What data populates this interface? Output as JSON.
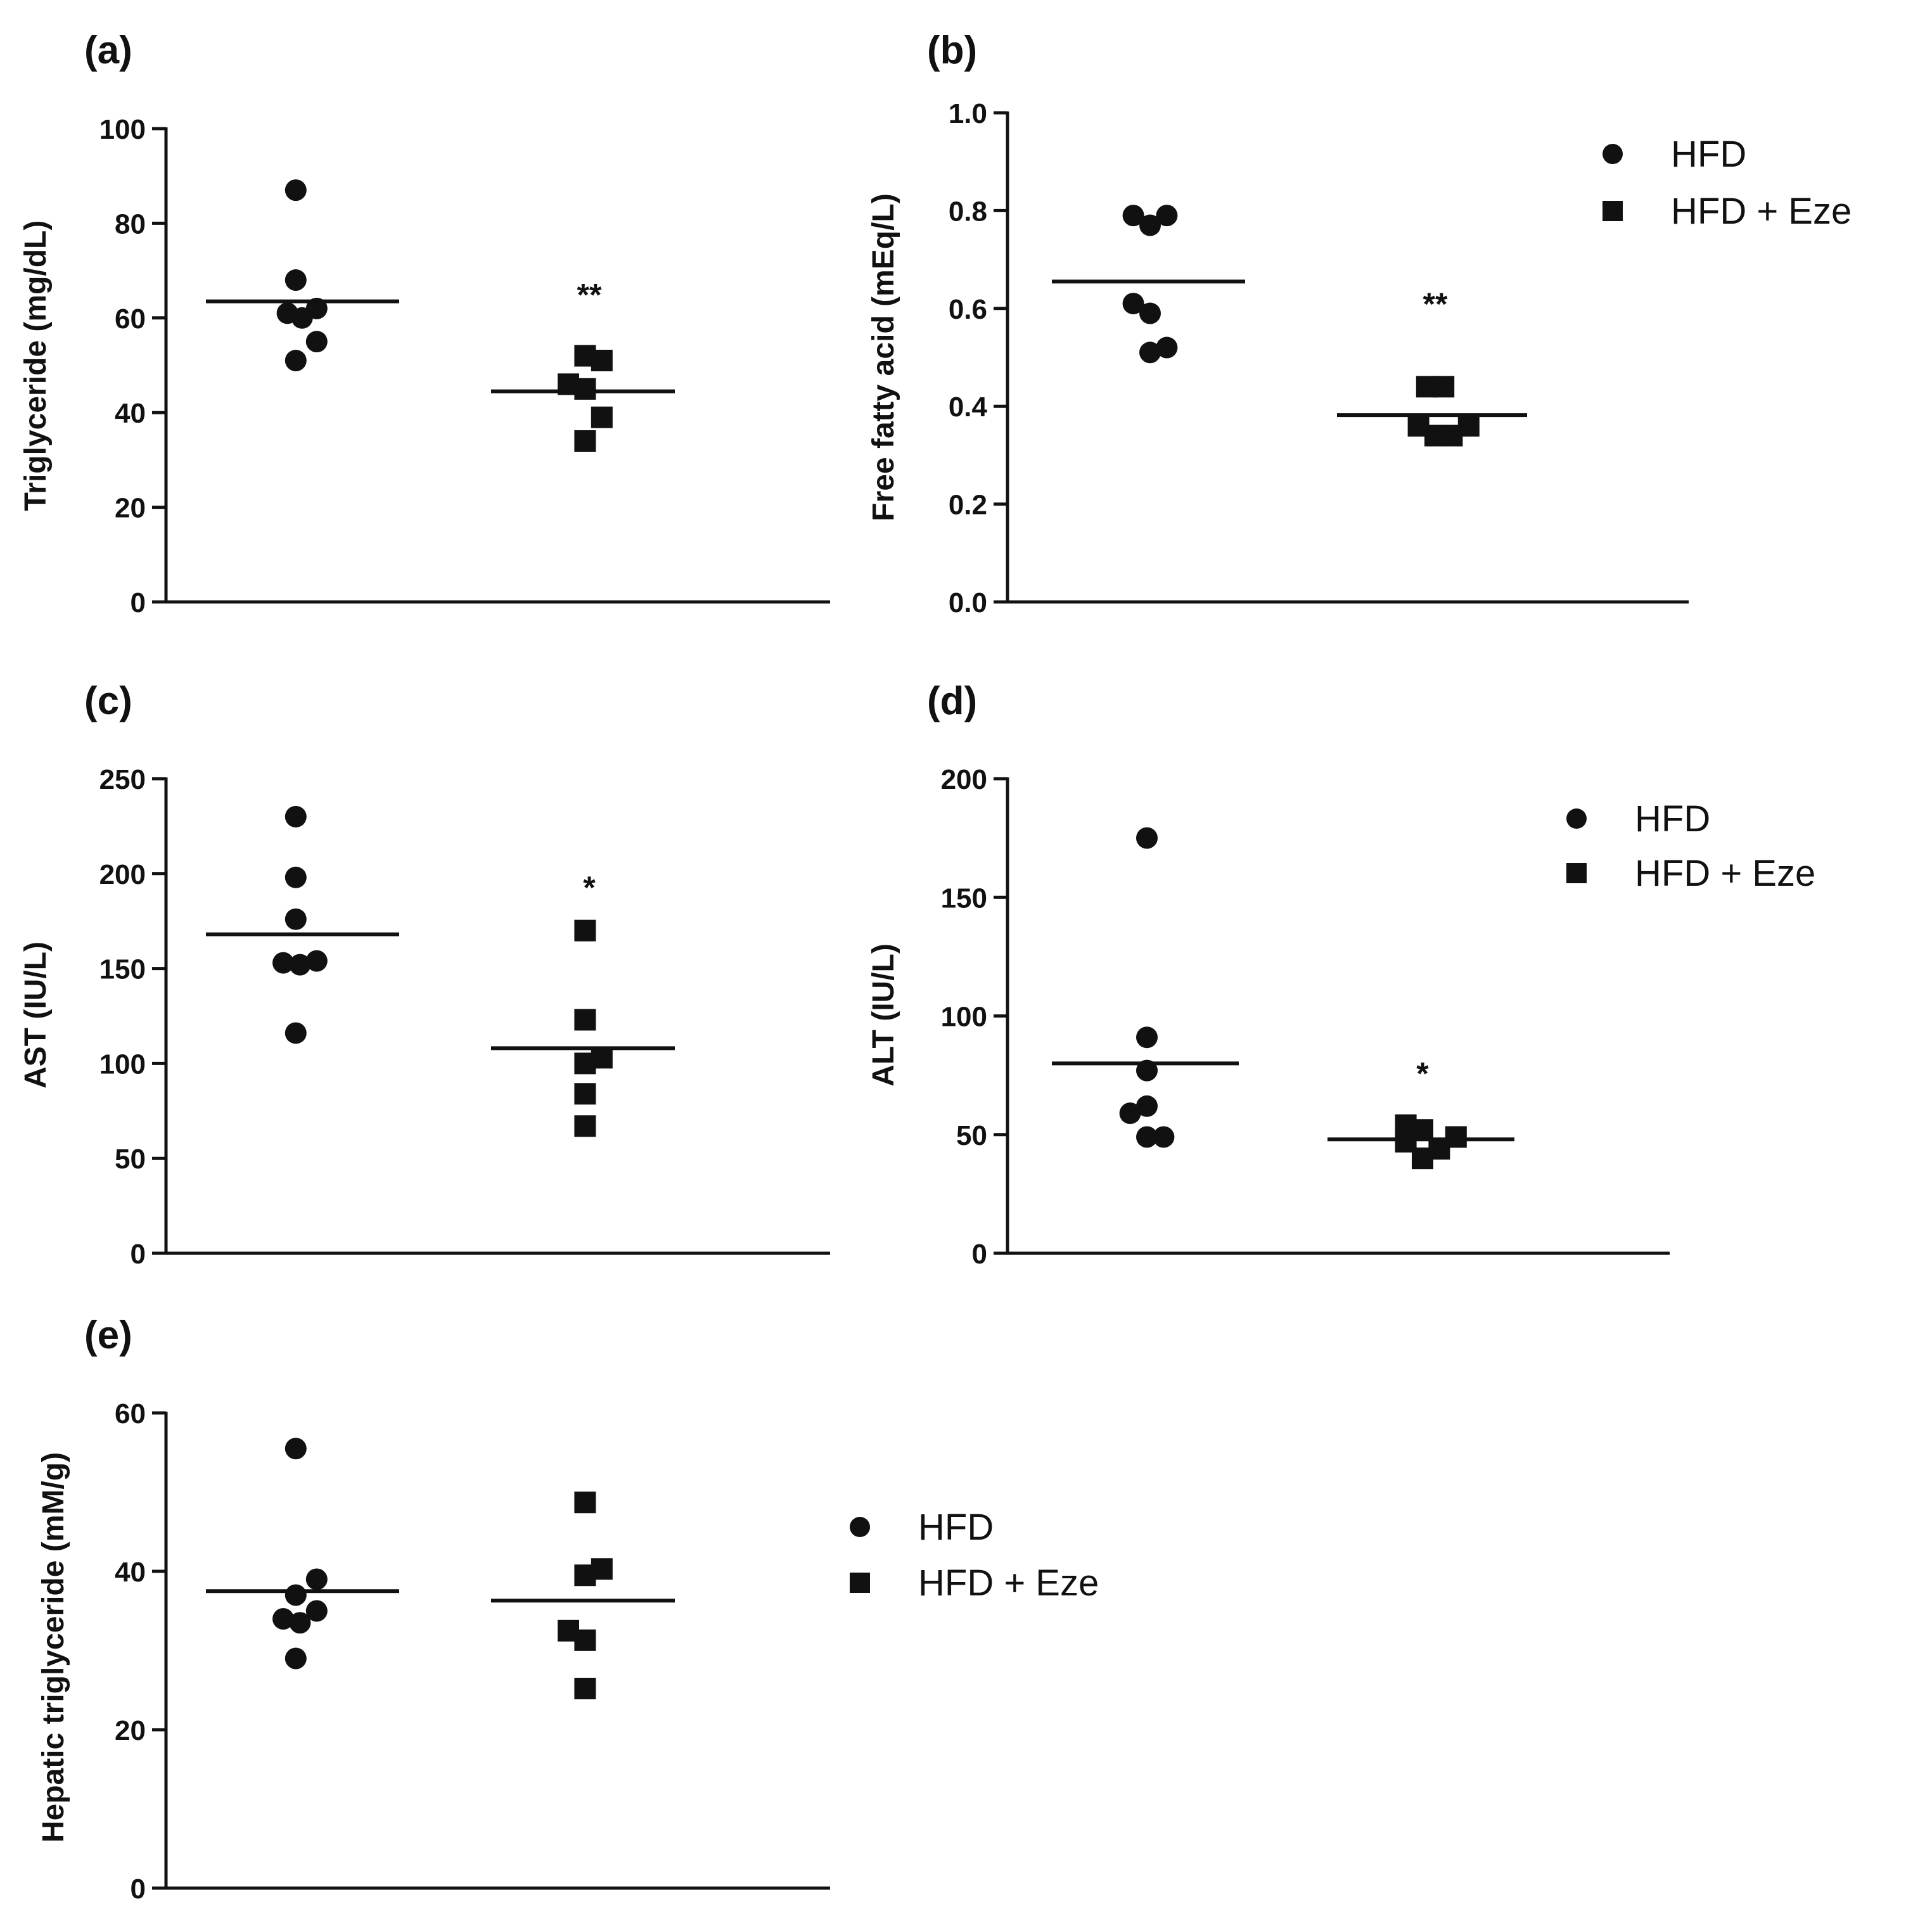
{
  "legend": {
    "items": [
      {
        "label": "HFD",
        "marker": "circle"
      },
      {
        "label": "HFD + Eze",
        "marker": "square"
      }
    ],
    "items_b": [
      {
        "label": "HFD",
        "marker": "circle"
      },
      {
        "label": "HFD +   Eze",
        "marker": "square"
      }
    ]
  },
  "colors": {
    "marker": "#111111",
    "axis": "#111111"
  },
  "chart_data": [
    {
      "panel": "(a)",
      "type": "scatter",
      "ylabel": "Triglyceride (mg/dL)",
      "ylim": [
        0,
        100
      ],
      "yticks": [
        0,
        20,
        40,
        60,
        80,
        100
      ],
      "tick_decimals": 0,
      "groups": [
        {
          "name": "HFD",
          "marker": "circle",
          "mean": 63.5,
          "points": [
            [
              -0.04,
              87
            ],
            [
              -0.04,
              68
            ],
            [
              -0.08,
              61
            ],
            [
              -0.01,
              60
            ],
            [
              0.06,
              62
            ],
            [
              0.06,
              55
            ],
            [
              -0.04,
              51
            ]
          ]
        },
        {
          "name": "HFD + Eze",
          "marker": "square",
          "mean": 44.5,
          "points": [
            [
              -0.1,
              46
            ],
            [
              -0.02,
              45
            ],
            [
              -0.02,
              52
            ],
            [
              0.06,
              51
            ],
            [
              0.06,
              39
            ],
            [
              -0.02,
              34
            ]
          ],
          "significance": "**",
          "sig_y": 65
        }
      ],
      "legend": false
    },
    {
      "panel": "(b)",
      "type": "scatter",
      "ylabel": "Free fatty acid (mEq/L)",
      "ylim": [
        0,
        1.0
      ],
      "yticks": [
        0.0,
        0.2,
        0.4,
        0.6,
        0.8,
        1.0
      ],
      "tick_decimals": 1,
      "groups": [
        {
          "name": "HFD",
          "marker": "circle",
          "mean": 0.655,
          "points": [
            [
              -0.08,
              0.79
            ],
            [
              0,
              0.77
            ],
            [
              0.08,
              0.79
            ],
            [
              -0.08,
              0.61
            ],
            [
              0,
              0.59
            ],
            [
              0,
              0.51
            ],
            [
              0.08,
              0.52
            ]
          ]
        },
        {
          "name": "HFD + Eze",
          "marker": "square",
          "mean": 0.382,
          "points": [
            [
              -0.04,
              0.44
            ],
            [
              0.04,
              0.44
            ],
            [
              -0.08,
              0.36
            ],
            [
              0,
              0.34
            ],
            [
              0.08,
              0.34
            ],
            [
              0.16,
              0.36
            ]
          ],
          "significance": "**",
          "sig_y": 0.61
        }
      ],
      "legend": "items_b"
    },
    {
      "panel": "(c)",
      "type": "scatter",
      "ylabel": "AST (IU/L)",
      "ylim": [
        0,
        250
      ],
      "yticks": [
        0,
        50,
        100,
        150,
        200,
        250
      ],
      "tick_decimals": 0,
      "groups": [
        {
          "name": "HFD",
          "marker": "circle",
          "mean": 168,
          "points": [
            [
              -0.04,
              230
            ],
            [
              -0.04,
              198
            ],
            [
              -0.04,
              176
            ],
            [
              -0.1,
              153
            ],
            [
              -0.02,
              152
            ],
            [
              0.06,
              154
            ],
            [
              -0.04,
              116
            ]
          ]
        },
        {
          "name": "HFD + Eze",
          "marker": "square",
          "mean": 108,
          "points": [
            [
              -0.02,
              170
            ],
            [
              -0.02,
              123
            ],
            [
              -0.02,
              100
            ],
            [
              0.06,
              103
            ],
            [
              -0.02,
              84
            ],
            [
              -0.02,
              67
            ]
          ],
          "significance": "*",
          "sig_y": 193
        }
      ],
      "legend": false
    },
    {
      "panel": "(d)",
      "type": "scatter",
      "ylabel": "ALT (IU/L)",
      "ylim": [
        0,
        200
      ],
      "yticks": [
        0,
        50,
        100,
        150,
        200
      ],
      "tick_decimals": 0,
      "groups": [
        {
          "name": "HFD",
          "marker": "circle",
          "mean": 80,
          "points": [
            [
              0,
              175
            ],
            [
              0,
              91
            ],
            [
              0,
              77
            ],
            [
              0,
              62
            ],
            [
              -0.08,
              59
            ],
            [
              0,
              49
            ],
            [
              0.08,
              49
            ]
          ]
        },
        {
          "name": "HFD + Eze",
          "marker": "square",
          "mean": 48,
          "points": [
            [
              -0.08,
              54
            ],
            [
              0,
              52
            ],
            [
              -0.08,
              47
            ],
            [
              0,
              40
            ],
            [
              0.08,
              44
            ],
            [
              0.16,
              49
            ]
          ],
          "significance": "*",
          "sig_y": 76
        }
      ],
      "legend": "items"
    },
    {
      "panel": "(e)",
      "type": "scatter",
      "ylabel": "Hepatic triglyceride  (mM/g)",
      "ylim": [
        0,
        60
      ],
      "yticks": [
        0,
        20,
        40,
        60
      ],
      "tick_decimals": 0,
      "groups": [
        {
          "name": "HFD",
          "marker": "circle",
          "mean": 37.5,
          "points": [
            [
              -0.04,
              55.5
            ],
            [
              -0.04,
              37
            ],
            [
              0.06,
              39
            ],
            [
              -0.1,
              34
            ],
            [
              -0.02,
              33.5
            ],
            [
              0.06,
              35
            ],
            [
              -0.04,
              29
            ]
          ]
        },
        {
          "name": "HFD + Eze",
          "marker": "square",
          "mean": 36.3,
          "points": [
            [
              -0.1,
              32.5
            ],
            [
              -0.02,
              31.3
            ],
            [
              -0.02,
              48.7
            ],
            [
              -0.02,
              39.5
            ],
            [
              0.06,
              40.3
            ],
            [
              -0.02,
              25.2
            ]
          ]
        }
      ],
      "legend": "items"
    }
  ]
}
